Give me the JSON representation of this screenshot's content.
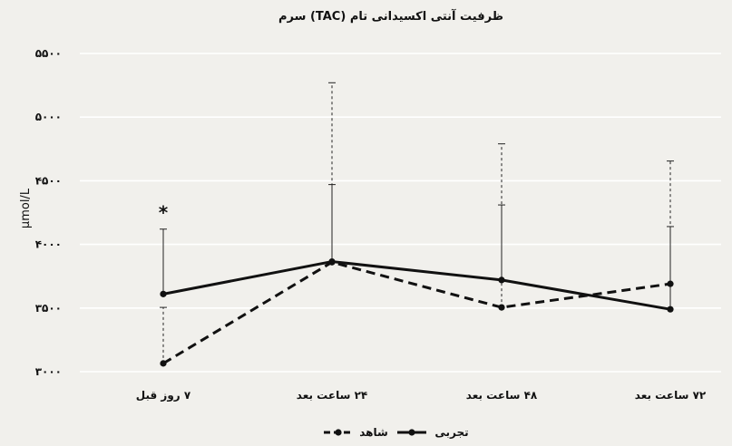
{
  "chart_data": {
    "type": "line",
    "title": "ظرفیت آنتی اکسیدانی تام (TAC) سرم",
    "xlabel": "",
    "ylabel": "μmol/L",
    "categories": [
      "۷ روز قبل",
      "۲۴ ساعت بعد",
      "۴۸ ساعت بعد",
      "۷۲ ساعت بعد"
    ],
    "ylim": [
      3000,
      5500
    ],
    "yticks": [
      3000,
      3500,
      4000,
      4500,
      5000,
      5500
    ],
    "ytick_labels": [
      "۳۰۰۰",
      "۳۵۰۰",
      "۴۰۰۰",
      "۴۵۰۰",
      "۵۰۰۰",
      "۵۵۰۰"
    ],
    "grid": true,
    "legend_position": "bottom",
    "series": [
      {
        "name": "تجربی",
        "style": "solid",
        "color": "#111111",
        "values": [
          3610,
          3865,
          3720,
          3490
        ],
        "error_upper": [
          4120,
          4470,
          4310,
          4140
        ]
      },
      {
        "name": "شاهد",
        "style": "dashed",
        "color": "#111111",
        "values": [
          3065,
          3860,
          3505,
          3690
        ],
        "error_upper": [
          3505,
          5270,
          4790,
          4655
        ]
      }
    ],
    "annotations": [
      {
        "text": "*",
        "category_index": 0,
        "y": 4200
      }
    ]
  }
}
